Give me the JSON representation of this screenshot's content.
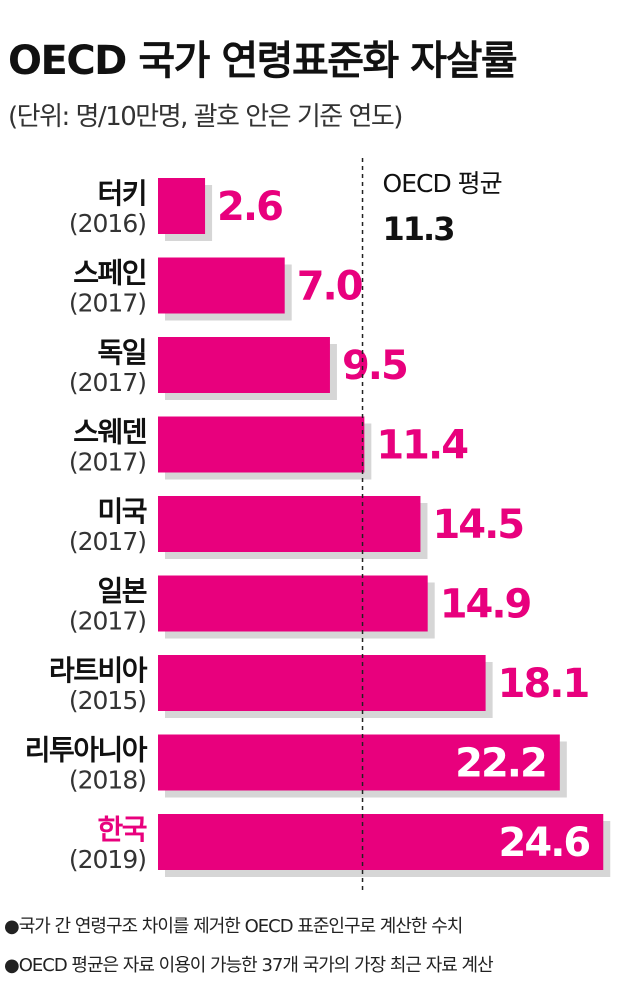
{
  "notes": [
    "●국가 간 연령구조 차이를 제거한 OECD 표준인구로 계산한 수치",
    "●OECD 평균은 자료 이용이 가능한 37개 국가의 가장 최근 자료 계산"
  ],
  "colors": {
    "bar": "#e8007d",
    "bar_shadow": "#d6d6d6",
    "highlight_label": "#e8007d",
    "text": "#111111",
    "value_outside": "#e8007d",
    "value_inside": "#ffffff"
  },
  "chart_data": {
    "type": "bar",
    "orientation": "horizontal",
    "title": "OECD 국가 연령표준화 자살률",
    "subtitle": "(단위: 명/10만명, 괄호 안은 기준 연도)",
    "categories": [
      {
        "name": "터키",
        "year": "(2016)"
      },
      {
        "name": "스페인",
        "year": "(2017)"
      },
      {
        "name": "독일",
        "year": "(2017)"
      },
      {
        "name": "스웨덴",
        "year": "(2017)"
      },
      {
        "name": "미국",
        "year": "(2017)"
      },
      {
        "name": "일본",
        "year": "(2017)"
      },
      {
        "name": "라트비아",
        "year": "(2015)"
      },
      {
        "name": "리투아니아",
        "year": "(2018)"
      },
      {
        "name": "한국",
        "year": "(2019)"
      }
    ],
    "values": [
      2.6,
      7.0,
      9.5,
      11.4,
      14.5,
      14.9,
      18.1,
      22.2,
      24.6
    ],
    "value_labels": [
      "2.6",
      "7.0",
      "9.5",
      "11.4",
      "14.5",
      "14.9",
      "18.1",
      "22.2",
      "24.6"
    ],
    "highlight_category": "한국",
    "reference_line": {
      "label": "OECD 평균",
      "value": 11.3,
      "value_label": "11.3",
      "style": "dashed"
    },
    "xlim": [
      0,
      25
    ],
    "grid": false,
    "legend": "none"
  }
}
